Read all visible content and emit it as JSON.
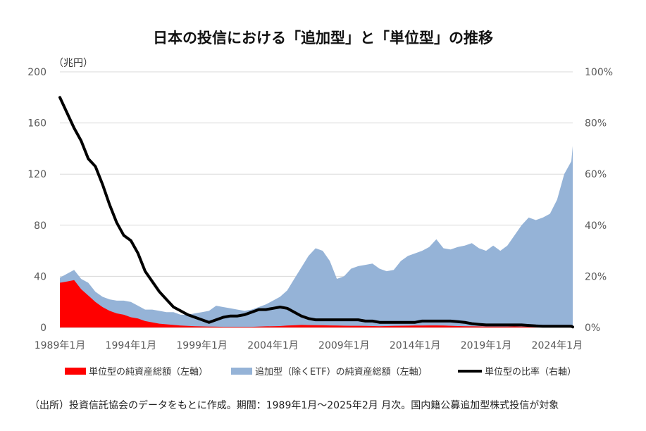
{
  "title": "日本の投信における「追加型」と「単位型」の推移",
  "unit_label": "（兆円）",
  "source": "（出所）投資信託協会のデータをもとに作成。期間：1989年1月〜2025年2月 月次。国内籍公募追加型株式投信が対象",
  "colors": {
    "unit_area": "#ff0000",
    "additional_area": "#95b3d7",
    "ratio_line": "#000000"
  },
  "chart_data": {
    "type": "area",
    "x_start": "1989年1月",
    "x_end": "2025年2月",
    "x_ticks": [
      "1989年1月",
      "1994年1月",
      "1999年1月",
      "2004年1月",
      "2009年1月",
      "2014年1月",
      "2019年1月",
      "2024年1月"
    ],
    "y_left_ticks": [
      "0",
      "40",
      "80",
      "120",
      "160",
      "200"
    ],
    "y_right_ticks": [
      "0%",
      "20%",
      "40%",
      "60%",
      "80%",
      "100%"
    ],
    "ylim_left": [
      0,
      200
    ],
    "ylim_right": [
      0,
      100
    ],
    "grid": true,
    "legend_position": "bottom",
    "x": [
      1989.0,
      1989.5,
      1990.0,
      1990.5,
      1991.0,
      1991.5,
      1992.0,
      1992.5,
      1993.0,
      1993.5,
      1994.0,
      1994.5,
      1995.0,
      1995.5,
      1996.0,
      1996.5,
      1997.0,
      1997.5,
      1998.0,
      1998.5,
      1999.0,
      1999.5,
      2000.0,
      2000.5,
      2001.0,
      2001.5,
      2002.0,
      2002.5,
      2003.0,
      2003.5,
      2004.0,
      2004.5,
      2005.0,
      2005.5,
      2006.0,
      2006.5,
      2007.0,
      2007.5,
      2008.0,
      2008.5,
      2009.0,
      2009.5,
      2010.0,
      2010.5,
      2011.0,
      2011.5,
      2012.0,
      2012.5,
      2013.0,
      2013.5,
      2014.0,
      2014.5,
      2015.0,
      2015.5,
      2016.0,
      2016.5,
      2017.0,
      2017.5,
      2018.0,
      2018.5,
      2019.0,
      2019.5,
      2020.0,
      2020.5,
      2021.0,
      2021.5,
      2022.0,
      2022.5,
      2023.0,
      2023.5,
      2024.0,
      2024.5,
      2025.0,
      2025.1
    ],
    "series": [
      {
        "name": "追加型（除くETF）の純資産総額（左軸）",
        "axis": "left",
        "type": "area",
        "values": [
          39,
          42,
          45,
          38,
          35,
          28,
          24,
          22,
          21,
          21,
          20,
          17,
          14,
          14,
          13,
          12,
          12,
          10,
          10,
          11,
          12,
          13,
          17,
          16,
          15,
          14,
          13,
          14,
          16,
          18,
          21,
          24,
          29,
          38,
          47,
          56,
          62,
          60,
          52,
          38,
          40,
          46,
          48,
          49,
          50,
          46,
          44,
          45,
          52,
          56,
          58,
          60,
          63,
          69,
          62,
          61,
          63,
          64,
          66,
          62,
          60,
          64,
          60,
          64,
          72,
          80,
          86,
          84,
          86,
          89,
          100,
          120,
          130,
          142
        ]
      },
      {
        "name": "単位型の純資産総額（左軸）",
        "axis": "left",
        "type": "area",
        "values": [
          35,
          36,
          37,
          30,
          25,
          20,
          16,
          13,
          11,
          10,
          8,
          7,
          5,
          4,
          3,
          2.5,
          2,
          1.5,
          1.2,
          1,
          0.8,
          0.7,
          0.6,
          0.5,
          0.5,
          0.5,
          0.5,
          0.5,
          0.7,
          0.9,
          1,
          1.1,
          1.5,
          1.7,
          2,
          1.9,
          1.8,
          1.7,
          1.6,
          1.5,
          1.4,
          1.3,
          1.3,
          1.2,
          1.1,
          1,
          1.1,
          1.2,
          1.3,
          1.4,
          1.5,
          1.5,
          1.6,
          1.6,
          1.5,
          1.3,
          1.1,
          1,
          0.9,
          0.8,
          0.7,
          0.7,
          0.7,
          0.7,
          0.8,
          0.7,
          0.6,
          0.5,
          0.4,
          0.4,
          0.4,
          0.4,
          0.3,
          0.3
        ]
      },
      {
        "name": "単位型の比率（右軸）",
        "axis": "right",
        "type": "line",
        "values": [
          90,
          84,
          78,
          73,
          66,
          63,
          56,
          48,
          41,
          36,
          34,
          29,
          22,
          18,
          14,
          11,
          8,
          6.5,
          5,
          4,
          3,
          2,
          3,
          4,
          4.5,
          4.5,
          5,
          6,
          7,
          7,
          7.5,
          8,
          7.5,
          6,
          4.5,
          3.5,
          3,
          3,
          3,
          3,
          3,
          3,
          3,
          2.5,
          2.5,
          2,
          2,
          2,
          2,
          2,
          2,
          2.5,
          2.5,
          2.5,
          2.5,
          2.5,
          2.3,
          2,
          1.5,
          1.2,
          1,
          1,
          1,
          1,
          1,
          1,
          0.8,
          0.6,
          0.5,
          0.5,
          0.5,
          0.5,
          0.5,
          0.2
        ]
      }
    ]
  }
}
